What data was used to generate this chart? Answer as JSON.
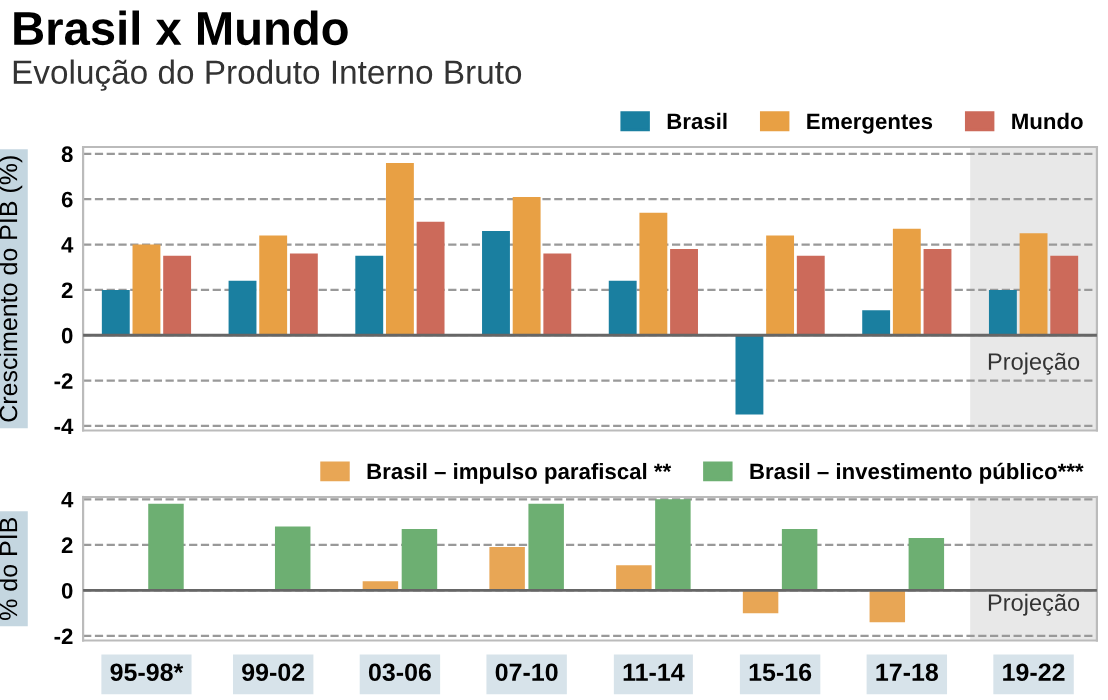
{
  "chart_data": [
    {
      "type": "bar",
      "title": "Brasil x Mundo",
      "subtitle": "Evolução do Produto Interno Bruto",
      "ylabel": "Crescimento do PIB (%)",
      "categories": [
        "95-98*",
        "99-02",
        "03-06",
        "07-10",
        "11-14",
        "15-16",
        "17-18",
        "19-22"
      ],
      "series": [
        {
          "name": "Brasil",
          "color": "#1a7fa0",
          "values": [
            2.0,
            2.4,
            3.5,
            4.6,
            2.4,
            -3.5,
            1.1,
            2.0
          ]
        },
        {
          "name": "Emergentes",
          "color": "#e8a044",
          "values": [
            4.0,
            4.4,
            7.6,
            6.1,
            5.4,
            4.4,
            4.7,
            4.5
          ]
        },
        {
          "name": "Mundo",
          "color": "#cc6a5a",
          "values": [
            3.5,
            3.6,
            5.0,
            3.6,
            3.8,
            3.5,
            3.8,
            3.5
          ]
        }
      ],
      "ylim": [
        -4.2,
        8.3
      ],
      "yticks": [
        -4,
        -2,
        0,
        2,
        4,
        6,
        8
      ],
      "grid": "y",
      "legend": "top right",
      "tick_labels": "y",
      "bands": [
        {
          "axis": "x",
          "from": "19-22",
          "to": "19-22",
          "label": "Projeção",
          "color": "#e8e8e8"
        }
      ]
    },
    {
      "type": "bar",
      "ylabel": "% do PIB",
      "categories": [
        "95-98*",
        "99-02",
        "03-06",
        "07-10",
        "11-14",
        "15-16",
        "17-18",
        "19-22"
      ],
      "series": [
        {
          "name": "Brasil – impulso parafiscal **",
          "color": "#e8a655",
          "values": [
            null,
            null,
            0.4,
            1.9,
            1.1,
            -1.0,
            -1.4,
            null
          ]
        },
        {
          "name": "Brasil – investimento público***",
          "color": "#6daf72",
          "values": [
            3.8,
            2.8,
            2.7,
            3.8,
            4.0,
            2.7,
            2.3,
            null
          ]
        }
      ],
      "ylim": [
        -2.2,
        4.1
      ],
      "yticks": [
        -2,
        0,
        2,
        4
      ],
      "grid": "y",
      "legend": "top right",
      "bands": [
        {
          "axis": "x",
          "from": "19-22",
          "to": "19-22",
          "label": "Projeção",
          "color": "#e8e8e8"
        }
      ]
    }
  ]
}
